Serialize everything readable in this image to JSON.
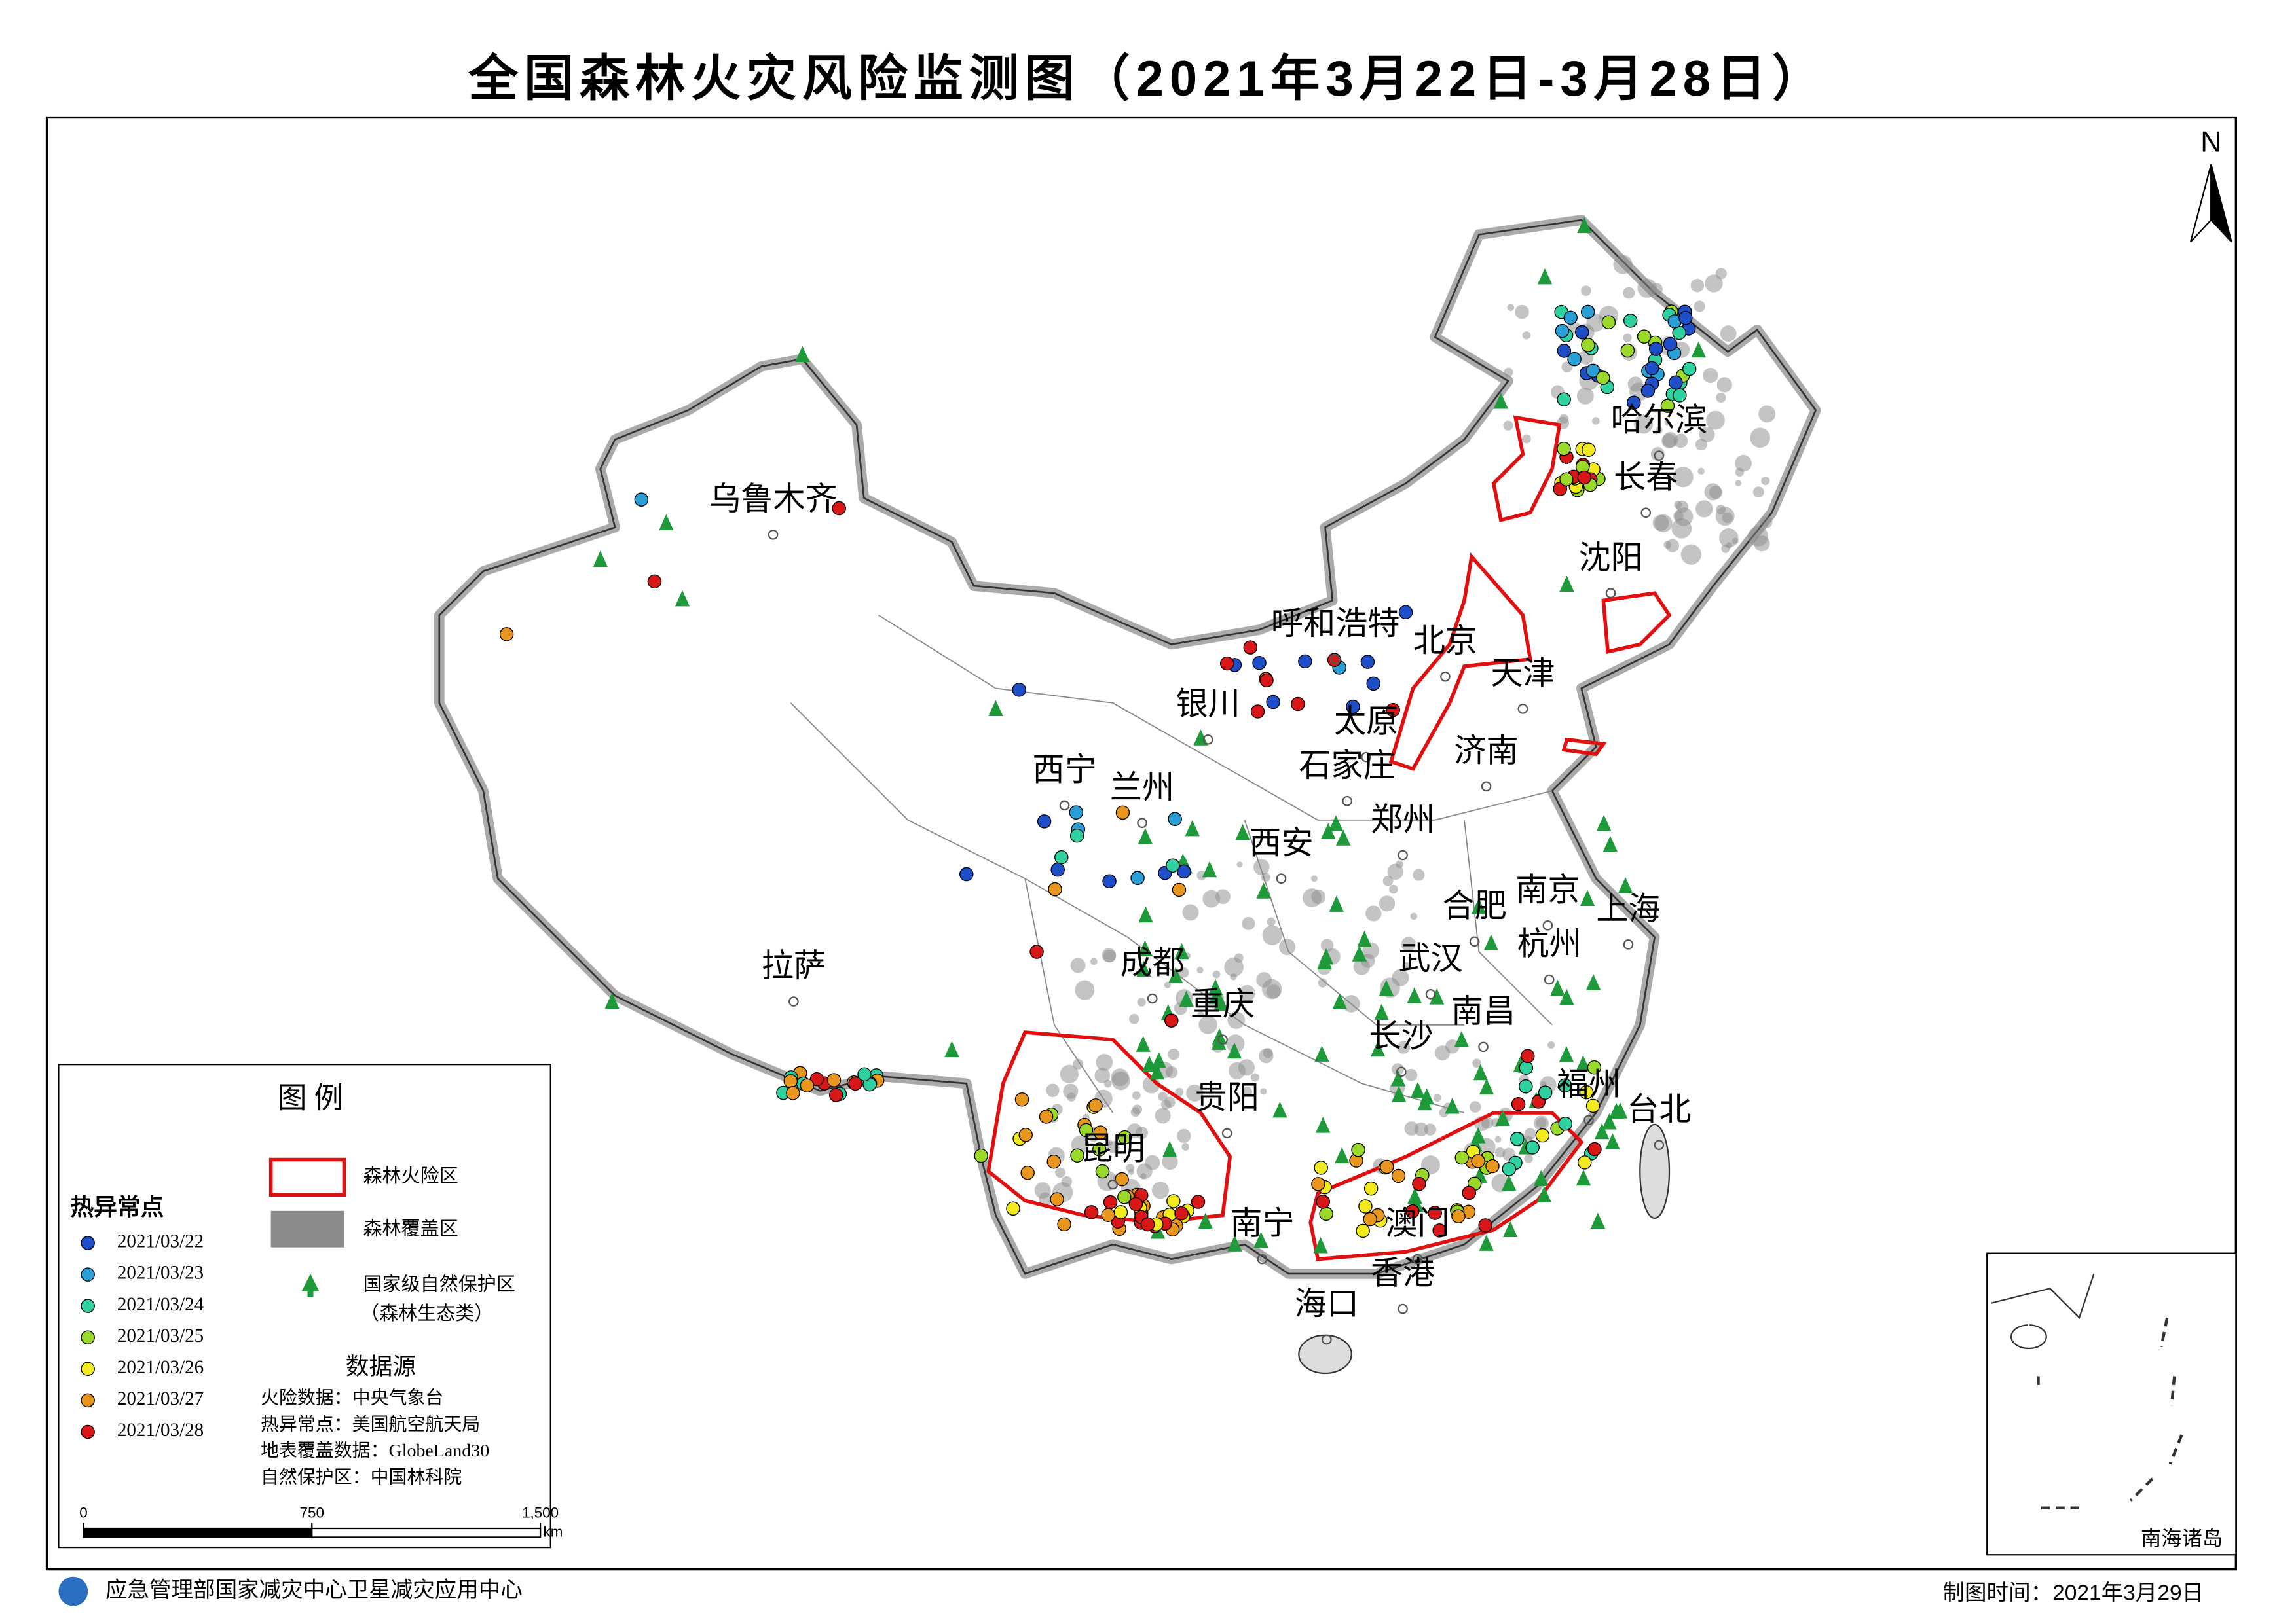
{
  "title": "全国森林火灾风险监测图（2021年3月22日-3月28日）",
  "north": "N",
  "cities": [
    "乌鲁木齐",
    "拉萨",
    "西宁",
    "兰州",
    "银川",
    "呼和浩特",
    "北京",
    "天津",
    "太原",
    "石家庄",
    "济南",
    "郑州",
    "西安",
    "成都",
    "重庆",
    "贵阳",
    "昆明",
    "南宁",
    "海口",
    "香港",
    "澳门",
    "长沙",
    "南昌",
    "武汉",
    "合肥",
    "南京",
    "杭州",
    "上海",
    "福州",
    "台北",
    "沈阳",
    "长春",
    "哈尔滨"
  ],
  "legend": {
    "title": "图  例",
    "hotspot_title": "热异常点",
    "dates": [
      {
        "label": "2021/03/22",
        "color": "#1f4fc8"
      },
      {
        "label": "2021/03/23",
        "color": "#2a9fd6"
      },
      {
        "label": "2021/03/24",
        "color": "#2fd1a0"
      },
      {
        "label": "2021/03/25",
        "color": "#9ad82a"
      },
      {
        "label": "2021/03/26",
        "color": "#f0ea1e"
      },
      {
        "label": "2021/03/27",
        "color": "#e8961e"
      },
      {
        "label": "2021/03/28",
        "color": "#d81818"
      }
    ],
    "fire_risk_area": "森林火险区",
    "fire_risk_color": "#e01010",
    "forest_cover": "森林覆盖区",
    "forest_color": "#8a8a8a",
    "reserve": "国家级自然保护区",
    "reserve_note": "（森林生态类）",
    "reserve_color": "#1e9a3a",
    "sources_title": "数据源",
    "sources": [
      "火险数据：中央气象台",
      "热异常点：美国航空航天局",
      "地表覆盖数据：GlobeLand30",
      "自然保护区：中国林科院"
    ]
  },
  "scale_bar": {
    "ticks": [
      0,
      750,
      {
        "value": 1500,
        "label": "1,500"
      }
    ],
    "unit": "km"
  },
  "inset_label": "南海诸岛",
  "footer": {
    "org": "应急管理部国家减灾中心卫星减灾应用中心",
    "date": "制图时间：2021年3月29日"
  }
}
